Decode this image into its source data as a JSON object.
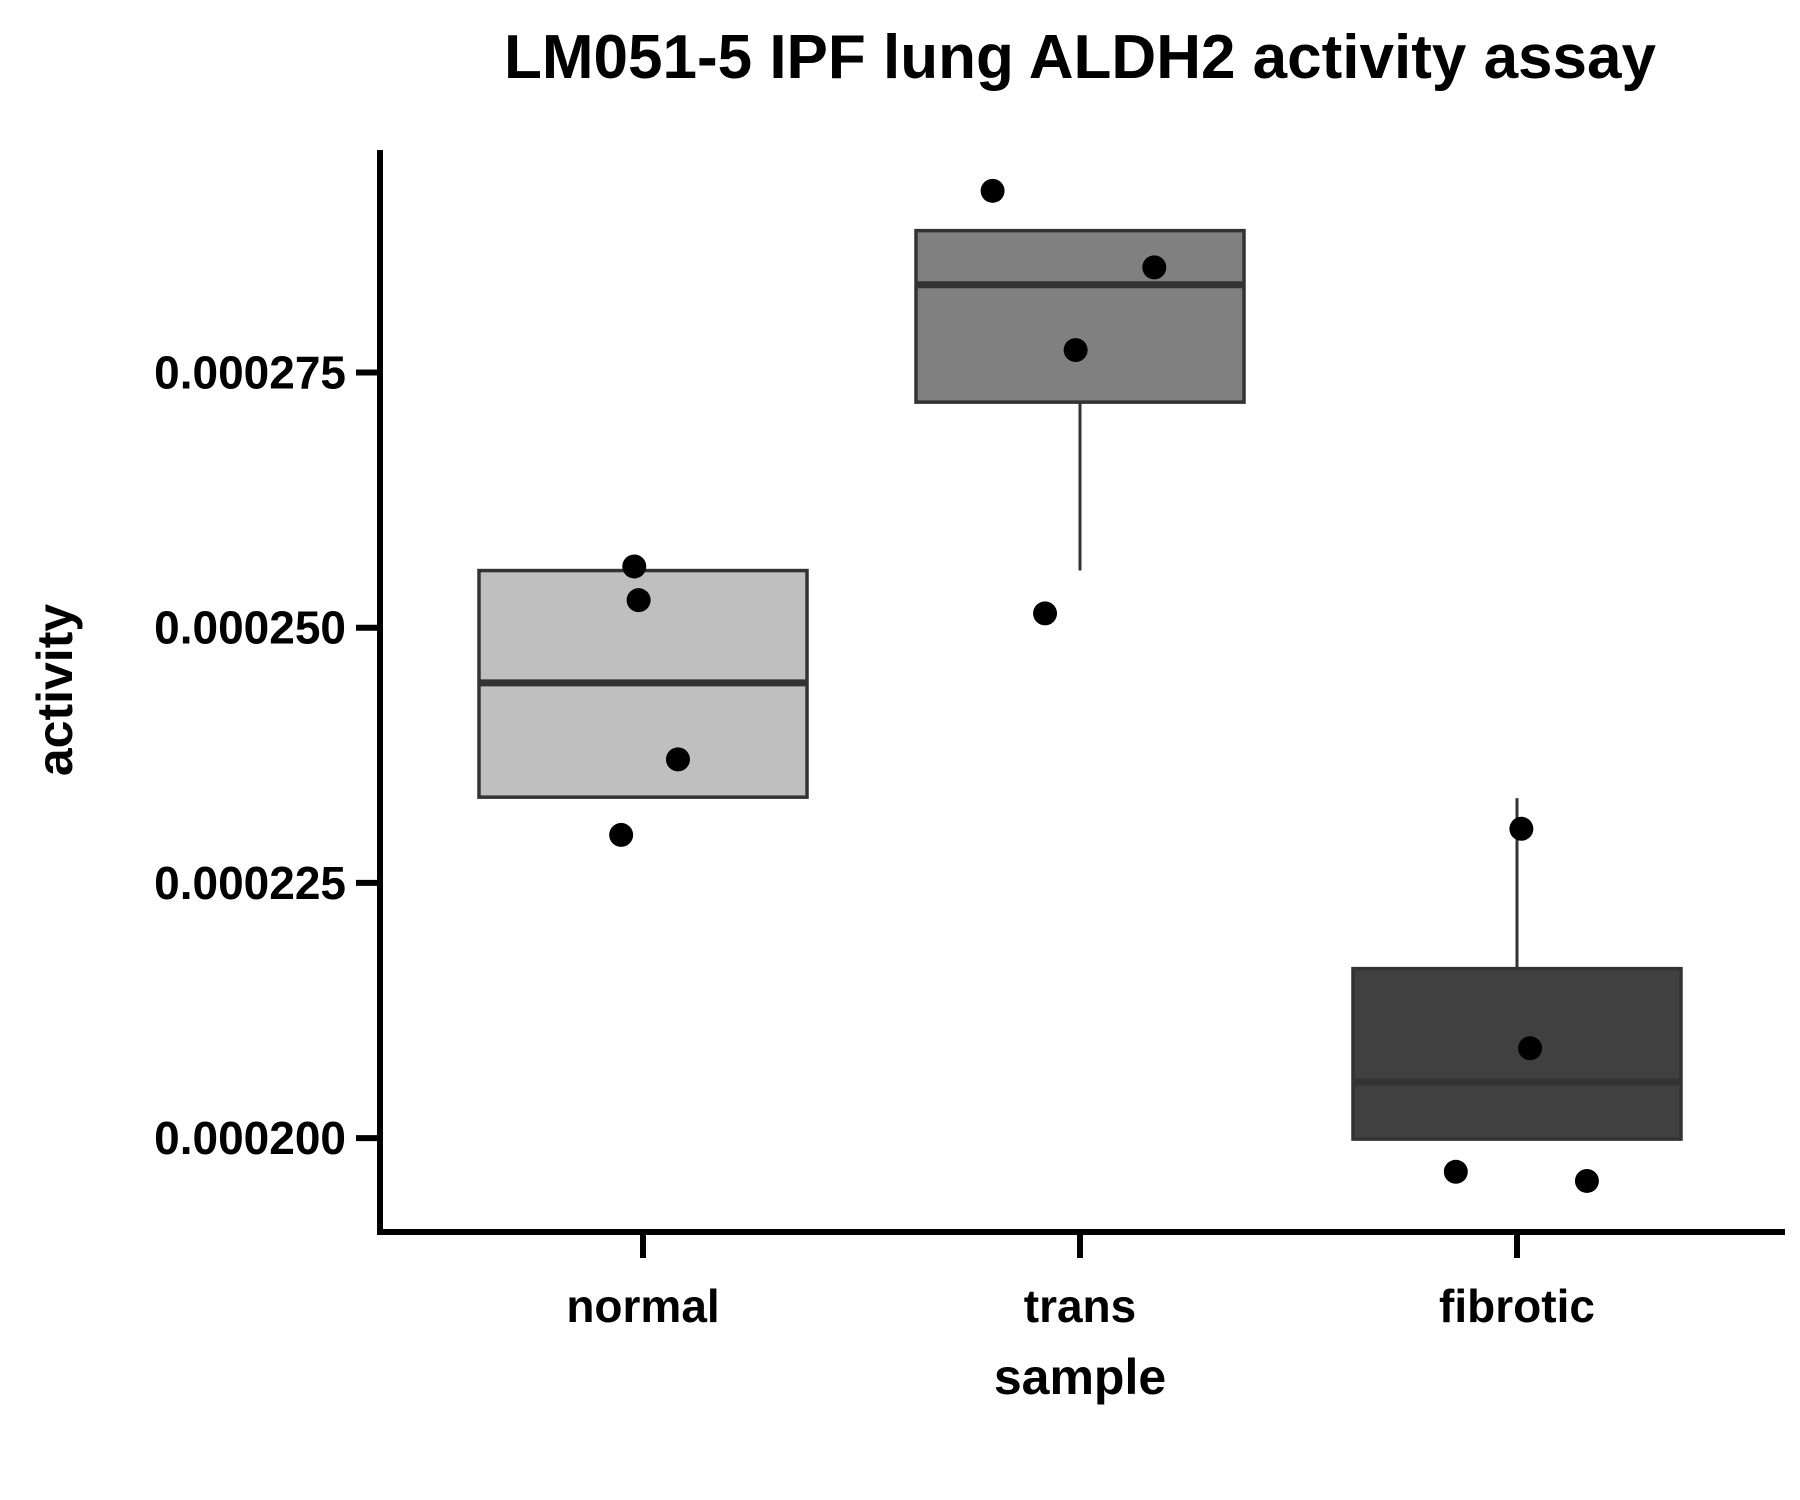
{
  "chart_data": {
    "type": "box",
    "title": "LM051-5 IPF lung ALDH2 activity assay",
    "xlabel": "sample",
    "ylabel": "activity",
    "categories": [
      "normal",
      "trans",
      "fibrotic"
    ],
    "y_ticks": [
      0.0002,
      0.000225,
      0.00025,
      0.000275
    ],
    "y_tick_labels": [
      "0.000200",
      "0.000225",
      "0.000250",
      "0.000275"
    ],
    "ylim": [
      0.0001908,
      0.0002968
    ],
    "grid": false,
    "boxes": [
      {
        "category": "normal",
        "q1": 0.0002334,
        "median": 0.0002446,
        "q3": 0.0002556,
        "whisker_low": 0.0002334,
        "whisker_high": 0.0002556,
        "color": "#bfbfbf"
      },
      {
        "category": "trans",
        "q1": 0.0002721,
        "median": 0.0002836,
        "q3": 0.0002889,
        "whisker_low": 0.0002556,
        "whisker_high": 0.0002889,
        "color": "#808080"
      },
      {
        "category": "fibrotic",
        "q1": 0.0001999,
        "median": 0.0002055,
        "q3": 0.0002166,
        "whisker_low": 0.0001999,
        "whisker_high": 0.0002333,
        "color": "#404040"
      }
    ],
    "points": [
      {
        "category": "normal",
        "x_jitter": -0.02,
        "y": 0.000256
      },
      {
        "category": "normal",
        "x_jitter": -0.01,
        "y": 0.0002527
      },
      {
        "category": "normal",
        "x_jitter": 0.08,
        "y": 0.0002371
      },
      {
        "category": "normal",
        "x_jitter": -0.05,
        "y": 0.0002297
      },
      {
        "category": "trans",
        "x_jitter": -0.2,
        "y": 0.0002928
      },
      {
        "category": "trans",
        "x_jitter": 0.17,
        "y": 0.0002853
      },
      {
        "category": "trans",
        "x_jitter": -0.01,
        "y": 0.0002772
      },
      {
        "category": "trans",
        "x_jitter": -0.08,
        "y": 0.0002514
      },
      {
        "category": "fibrotic",
        "x_jitter": 0.01,
        "y": 0.0002303
      },
      {
        "category": "fibrotic",
        "x_jitter": 0.03,
        "y": 0.0002088
      },
      {
        "category": "fibrotic",
        "x_jitter": -0.14,
        "y": 0.0001967
      },
      {
        "category": "fibrotic",
        "x_jitter": 0.16,
        "y": 0.0001958
      }
    ]
  }
}
